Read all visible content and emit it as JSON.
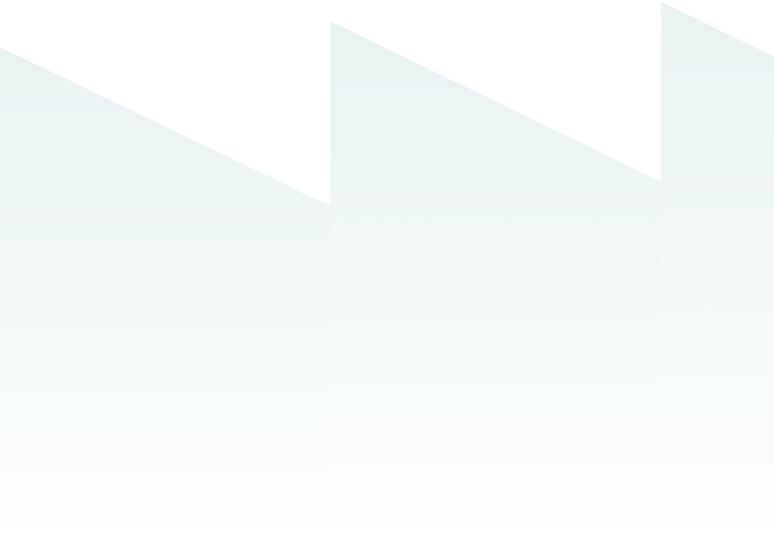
{
  "background": {
    "base_color": "#ffffff",
    "shape_color": "#e8f3f2",
    "pattern": "sawtooth-triangles"
  }
}
